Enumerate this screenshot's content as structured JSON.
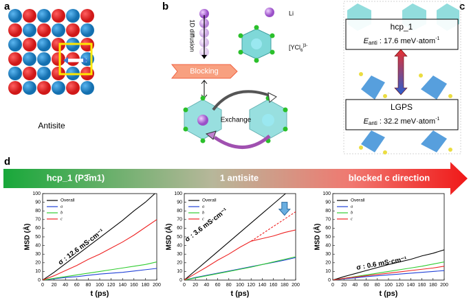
{
  "panels": {
    "a": {
      "letter": "a",
      "caption": "Antisite"
    },
    "b": {
      "letter": "b",
      "diffusion": "1D diffusion",
      "li": "Li",
      "cluster": "[YCl",
      "cluster_sub": "6",
      "cluster_sup": "]3-",
      "blocking": "Blocking",
      "exchange": "Exchange"
    },
    "c": {
      "letter": "c",
      "boxes": [
        {
          "name": "hcp_1",
          "symbol": "E",
          "sub": "anti",
          "text": " : 17.6 meV·atom",
          "sup": "-1"
        },
        {
          "name": "LGPS",
          "symbol": "E",
          "sub": "anti",
          "text": " : 32.2 meV·atom",
          "sup": "-1"
        }
      ]
    },
    "d": {
      "letter": "d",
      "banner": [
        "hcp_1 (P3̄m1)",
        "1 antisite",
        "blocked c direction"
      ]
    }
  },
  "chart_data": [
    {
      "type": "line",
      "xlabel": "t (ps)",
      "ylabel": "MSD (Å)",
      "annotation": "σ : 12.6 mS·cm⁻¹",
      "x": [
        0,
        20,
        40,
        60,
        80,
        100,
        120,
        140,
        160,
        180,
        200
      ],
      "xlim": [
        0,
        200
      ],
      "xticks": [
        0,
        20,
        40,
        60,
        80,
        100,
        120,
        140,
        160,
        180,
        200
      ],
      "ylim": [
        0,
        100
      ],
      "yticks": [
        0,
        10,
        20,
        30,
        40,
        50,
        60,
        70,
        80,
        90,
        100
      ],
      "series": [
        {
          "name": "Overall",
          "color": "#000000",
          "values": [
            0,
            9,
            19,
            29,
            39,
            49,
            59,
            69,
            80,
            90,
            102
          ]
        },
        {
          "name": "a",
          "color": "#1f3fd6",
          "values": [
            0,
            1.5,
            3,
            4,
            5.5,
            7,
            8,
            9,
            10.5,
            12,
            13.5
          ]
        },
        {
          "name": "b",
          "color": "#2ecc2e",
          "values": [
            0,
            2,
            4,
            6,
            8,
            10,
            12,
            14,
            16,
            18,
            21
          ]
        },
        {
          "name": "c",
          "color": "#ee2020",
          "values": [
            0,
            5,
            11,
            17,
            24,
            30,
            37,
            44,
            52,
            61,
            70
          ]
        }
      ]
    },
    {
      "type": "line",
      "xlabel": "t (ps)",
      "ylabel": "MSD (Å)",
      "annotation": "σ : 3.6 mS·cm⁻¹",
      "x": [
        0,
        20,
        40,
        60,
        80,
        100,
        120,
        140,
        160,
        180,
        200
      ],
      "xlim": [
        0,
        200
      ],
      "xticks": [
        0,
        20,
        40,
        60,
        80,
        100,
        120,
        140,
        160,
        180,
        200
      ],
      "ylim": [
        0,
        100
      ],
      "yticks": [
        0,
        10,
        20,
        30,
        40,
        50,
        60,
        70,
        80,
        90,
        100
      ],
      "series": [
        {
          "name": "Overall",
          "color": "#000000",
          "values": [
            0,
            11,
            22,
            33,
            44,
            55,
            66,
            77,
            88,
            99,
            110
          ]
        },
        {
          "name": "a",
          "color": "#1f3fd6",
          "values": [
            0,
            3,
            5.5,
            8,
            10.5,
            13,
            15.5,
            18,
            20.5,
            23,
            26
          ]
        },
        {
          "name": "b",
          "color": "#2ecc2e",
          "values": [
            0,
            2.5,
            5,
            7.5,
            10,
            12.5,
            15,
            18,
            21,
            24,
            27
          ]
        },
        {
          "name": "c",
          "color": "#ee2020",
          "values": [
            0,
            7.5,
            15,
            23,
            30,
            38,
            45,
            48,
            51,
            55,
            58
          ]
        }
      ],
      "trend": {
        "x": [
          120,
          200
        ],
        "values": [
          45,
          79
        ],
        "color": "#ee2020"
      }
    },
    {
      "type": "line",
      "xlabel": "t (ps)",
      "ylabel": "MSD (Å)",
      "annotation": "σ : 0.6 mS·cm⁻¹",
      "x": [
        0,
        20,
        40,
        60,
        80,
        100,
        120,
        140,
        160,
        180,
        200
      ],
      "xlim": [
        0,
        200
      ],
      "xticks": [
        0,
        20,
        40,
        60,
        80,
        100,
        120,
        140,
        160,
        180,
        200
      ],
      "ylim": [
        0,
        100
      ],
      "yticks": [
        0,
        10,
        20,
        30,
        40,
        50,
        60,
        70,
        80,
        90,
        100
      ],
      "series": [
        {
          "name": "Overall",
          "color": "#000000",
          "values": [
            0,
            4,
            7.5,
            11,
            14.5,
            18,
            21,
            24,
            28,
            31,
            35
          ]
        },
        {
          "name": "a",
          "color": "#1f3fd6",
          "values": [
            0,
            1.5,
            2.5,
            4,
            5,
            6,
            7,
            8,
            9,
            10,
            11
          ]
        },
        {
          "name": "b",
          "color": "#2ecc2e",
          "values": [
            0,
            2,
            4,
            6,
            8,
            10,
            12,
            14,
            16,
            18.5,
            21
          ]
        },
        {
          "name": "c",
          "color": "#ee2020",
          "values": [
            0,
            2,
            3.5,
            5,
            6.5,
            8,
            9.5,
            11,
            12.5,
            14,
            16
          ]
        }
      ]
    }
  ]
}
